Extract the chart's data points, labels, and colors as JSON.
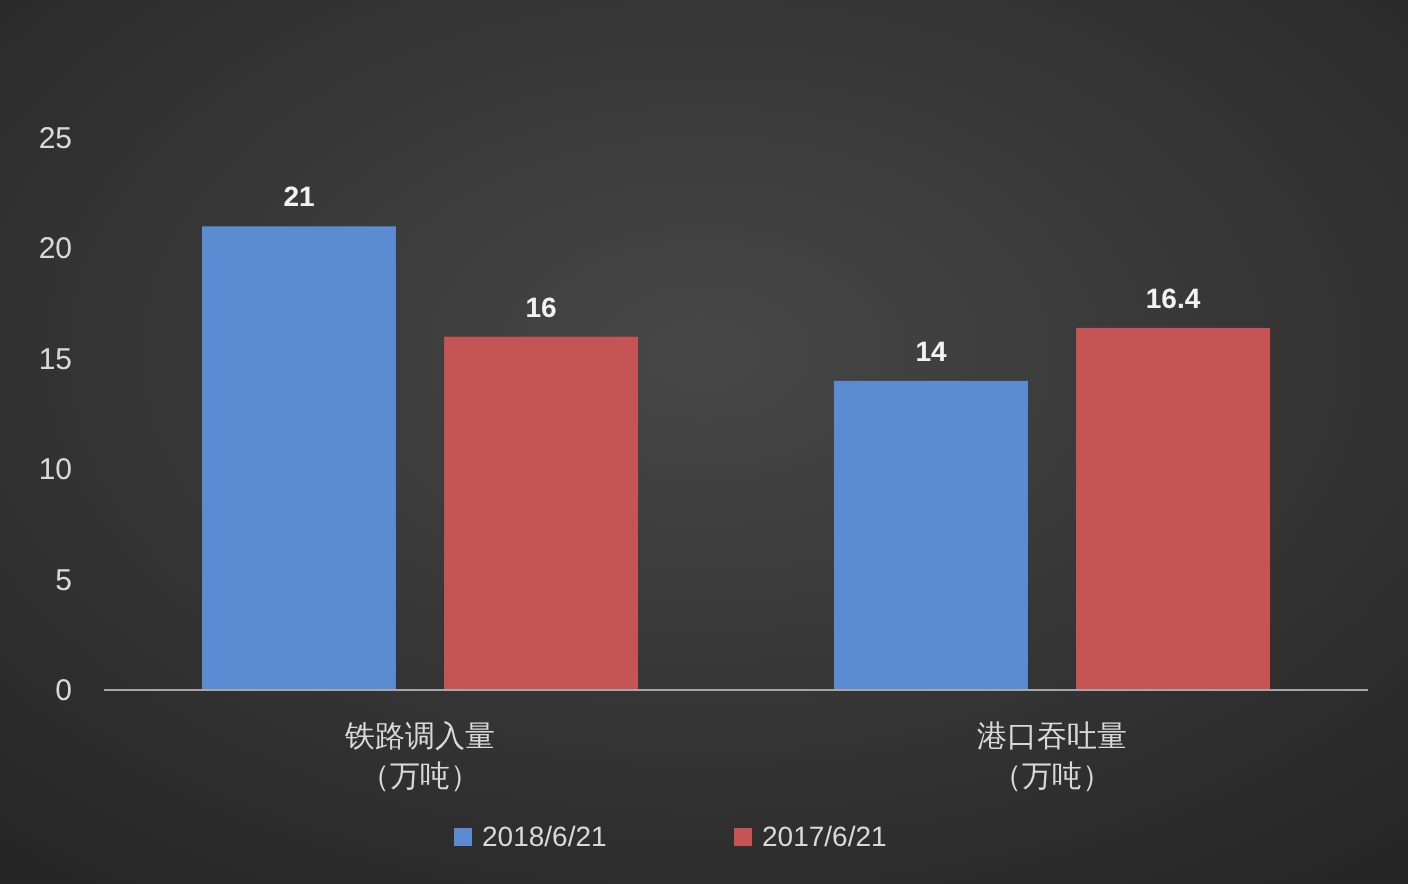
{
  "chart_data": {
    "type": "bar",
    "categories": [
      "铁路调入量（万吨）",
      "港口吞吐量（万吨）"
    ],
    "series": [
      {
        "name": "2018/6/21",
        "color": "#5b8bd0",
        "values": [
          21,
          14
        ]
      },
      {
        "name": "2017/6/21",
        "color": "#c65454",
        "values": [
          16,
          16.4
        ]
      }
    ],
    "ylim": [
      0,
      25
    ],
    "yticks": [
      0,
      5,
      10,
      15,
      20,
      25
    ],
    "grid": false,
    "legend": "bottom",
    "data_labels": true
  }
}
